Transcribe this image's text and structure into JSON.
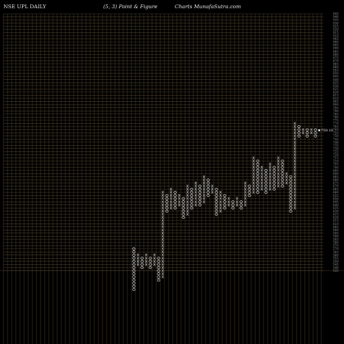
{
  "header": {
    "symbol_text": "NSE UPL  DAILY",
    "params_text": "(5,  3) Point & Figure",
    "source_text": "Charts MunafaSutra.com"
  },
  "colors": {
    "background": "#000000",
    "grid": "#4a3f2a",
    "marks": "#f2f2f2",
    "axis_text": "#9a9a9a",
    "last_price_box": "#ffffff"
  },
  "chart_data": {
    "type": "point-and-figure",
    "title": "NSE UPL  DAILY",
    "subtitle": "(5,  3) Point & Figure",
    "box_size": 5,
    "reversal": 3,
    "ylim": [
      535,
      945
    ],
    "y_ticks": [
      945,
      940,
      935,
      930,
      925,
      920,
      915,
      910,
      905,
      900,
      895,
      890,
      885,
      880,
      875,
      870,
      865,
      860,
      855,
      850,
      845,
      840,
      835,
      830,
      825,
      820,
      815,
      810,
      805,
      800,
      795,
      790,
      785,
      780,
      775,
      770,
      765,
      760,
      755,
      750,
      745,
      740,
      735,
      730,
      725,
      720,
      715,
      710,
      705,
      700,
      695,
      690,
      685,
      680,
      675,
      670,
      665,
      660,
      655,
      650,
      645,
      640,
      635,
      630,
      625,
      620,
      615,
      610,
      605,
      600,
      595,
      590,
      585,
      580,
      575,
      570,
      565,
      560,
      555,
      550,
      545,
      540,
      535
    ],
    "last_price": "759.10",
    "last_price_value": 759.1,
    "columns": [
      {
        "type": "O",
        "high": 570,
        "low": 505
      },
      {
        "type": "X",
        "high": 560,
        "low": 545
      },
      {
        "type": "O",
        "high": 555,
        "low": 540
      },
      {
        "type": "X",
        "high": 560,
        "low": 545
      },
      {
        "type": "O",
        "high": 555,
        "low": 540
      },
      {
        "type": "X",
        "high": 560,
        "low": 545
      },
      {
        "type": "O",
        "high": 555,
        "low": 520
      },
      {
        "type": "X",
        "high": 660,
        "low": 525
      },
      {
        "type": "O",
        "high": 655,
        "low": 630
      },
      {
        "type": "X",
        "high": 665,
        "low": 635
      },
      {
        "type": "O",
        "high": 660,
        "low": 635
      },
      {
        "type": "X",
        "high": 655,
        "low": 640
      },
      {
        "type": "O",
        "high": 650,
        "low": 620
      },
      {
        "type": "X",
        "high": 670,
        "low": 625
      },
      {
        "type": "O",
        "high": 665,
        "low": 635
      },
      {
        "type": "X",
        "high": 675,
        "low": 640
      },
      {
        "type": "O",
        "high": 670,
        "low": 640
      },
      {
        "type": "X",
        "high": 685,
        "low": 645
      },
      {
        "type": "O",
        "high": 680,
        "low": 655
      },
      {
        "type": "X",
        "high": 670,
        "low": 660
      },
      {
        "type": "O",
        "high": 665,
        "low": 625
      },
      {
        "type": "X",
        "high": 660,
        "low": 630
      },
      {
        "type": "O",
        "high": 655,
        "low": 635
      },
      {
        "type": "X",
        "high": 650,
        "low": 640
      },
      {
        "type": "O",
        "high": 645,
        "low": 635
      },
      {
        "type": "X",
        "high": 650,
        "low": 640
      },
      {
        "type": "O",
        "high": 645,
        "low": 635
      },
      {
        "type": "X",
        "high": 675,
        "low": 640
      },
      {
        "type": "O",
        "high": 670,
        "low": 655
      },
      {
        "type": "X",
        "high": 715,
        "low": 660
      },
      {
        "type": "O",
        "high": 710,
        "low": 660
      },
      {
        "type": "X",
        "high": 700,
        "low": 665
      },
      {
        "type": "O",
        "high": 695,
        "low": 660
      },
      {
        "type": "X",
        "high": 705,
        "low": 665
      },
      {
        "type": "O",
        "high": 700,
        "low": 665
      },
      {
        "type": "X",
        "high": 715,
        "low": 670
      },
      {
        "type": "O",
        "high": 710,
        "low": 670
      },
      {
        "type": "X",
        "high": 690,
        "low": 675
      },
      {
        "type": "O",
        "high": 685,
        "low": 630
      },
      {
        "type": "X",
        "high": 770,
        "low": 635
      },
      {
        "type": "O",
        "high": 765,
        "low": 750
      },
      {
        "type": "X",
        "high": 760,
        "low": 755
      },
      {
        "type": "O",
        "high": 760,
        "low": 750
      },
      {
        "type": "X",
        "high": 760,
        "low": 755
      },
      {
        "type": "O",
        "high": 760,
        "low": 750
      }
    ]
  }
}
